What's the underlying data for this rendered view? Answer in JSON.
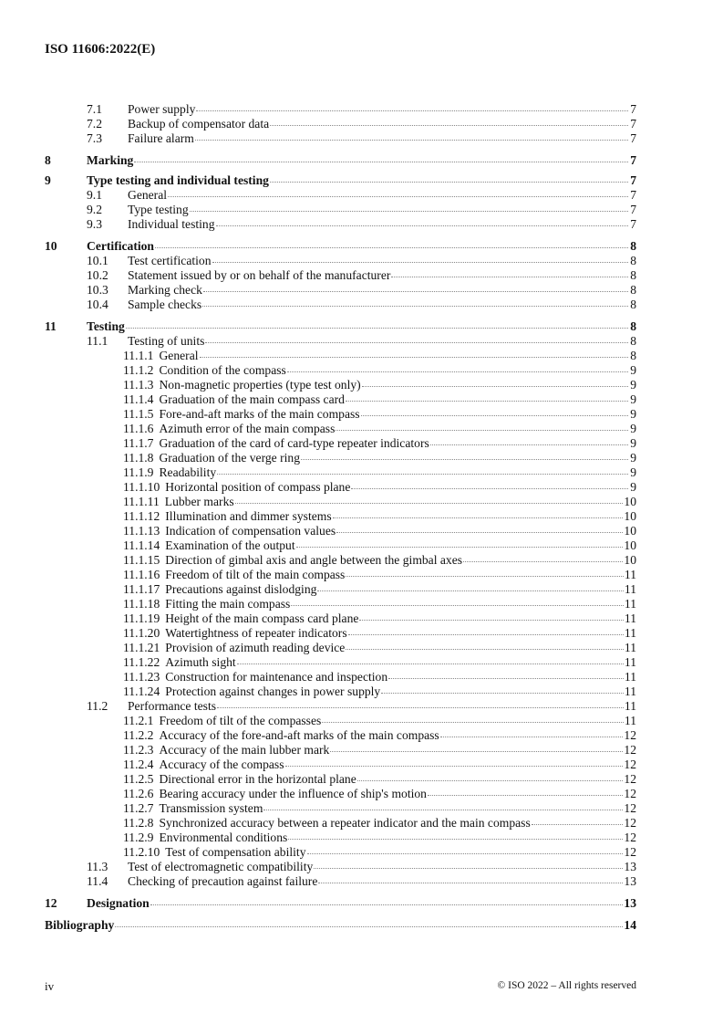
{
  "header": {
    "doc_id": "ISO 11606:2022(E)"
  },
  "toc": [
    {
      "level": 2,
      "num": "7.1",
      "title": "Power supply",
      "page": "7"
    },
    {
      "level": 2,
      "num": "7.2",
      "title": "Backup of compensator data",
      "page": "7"
    },
    {
      "level": 2,
      "num": "7.3",
      "title": "Failure alarm",
      "page": "7"
    },
    {
      "level": 1,
      "num": "8",
      "title": "Marking",
      "page": "7"
    },
    {
      "level": 1,
      "num": "9",
      "title": "Type testing and individual testing",
      "page": "7"
    },
    {
      "level": 2,
      "num": "9.1",
      "title": "General",
      "page": "7"
    },
    {
      "level": 2,
      "num": "9.2",
      "title": "Type testing",
      "page": "7"
    },
    {
      "level": 2,
      "num": "9.3",
      "title": "Individual testing",
      "page": "7"
    },
    {
      "level": 1,
      "num": "10",
      "title": "Certification",
      "page": "8"
    },
    {
      "level": 2,
      "num": "10.1",
      "title": "Test certification",
      "page": "8"
    },
    {
      "level": 2,
      "num": "10.2",
      "title": "Statement issued by or on behalf of the manufacturer",
      "page": "8"
    },
    {
      "level": 2,
      "num": "10.3",
      "title": "Marking check",
      "page": "8"
    },
    {
      "level": 2,
      "num": "10.4",
      "title": "Sample checks",
      "page": "8"
    },
    {
      "level": 1,
      "num": "11",
      "title": "Testing",
      "page": "8"
    },
    {
      "level": 2,
      "num": "11.1",
      "title": "Testing of units",
      "page": "8"
    },
    {
      "level": 3,
      "num": "11.1.1",
      "title": "General",
      "page": "8"
    },
    {
      "level": 3,
      "num": "11.1.2",
      "title": "Condition of the compass",
      "page": "9"
    },
    {
      "level": 3,
      "num": "11.1.3",
      "title": "Non-magnetic properties (type test only)",
      "page": "9"
    },
    {
      "level": 3,
      "num": "11.1.4",
      "title": "Graduation of the main compass card",
      "page": "9"
    },
    {
      "level": 3,
      "num": "11.1.5",
      "title": "Fore-and-aft marks of the main compass",
      "page": "9"
    },
    {
      "level": 3,
      "num": "11.1.6",
      "title": "Azimuth error of the main compass",
      "page": "9"
    },
    {
      "level": 3,
      "num": "11.1.7",
      "title": "Graduation of the card of card-type repeater indicators",
      "page": "9"
    },
    {
      "level": 3,
      "num": "11.1.8",
      "title": "Graduation of the verge ring",
      "page": "9"
    },
    {
      "level": 3,
      "num": "11.1.9",
      "title": "Readability",
      "page": "9"
    },
    {
      "level": 3,
      "num": "11.1.10",
      "title": "Horizontal position of compass plane",
      "page": "9"
    },
    {
      "level": 3,
      "num": "11.1.11",
      "title": "Lubber marks",
      "page": "10"
    },
    {
      "level": 3,
      "num": "11.1.12",
      "title": "Illumination and dimmer systems",
      "page": "10"
    },
    {
      "level": 3,
      "num": "11.1.13",
      "title": "Indication of compensation values",
      "page": "10"
    },
    {
      "level": 3,
      "num": "11.1.14",
      "title": "Examination of the output",
      "page": "10"
    },
    {
      "level": 3,
      "num": "11.1.15",
      "title": "Direction of gimbal axis and angle between the gimbal axes",
      "page": "10"
    },
    {
      "level": 3,
      "num": "11.1.16",
      "title": "Freedom of tilt of the main compass",
      "page": "11"
    },
    {
      "level": 3,
      "num": "11.1.17",
      "title": "Precautions against dislodging",
      "page": "11"
    },
    {
      "level": 3,
      "num": "11.1.18",
      "title": "Fitting the main compass",
      "page": "11"
    },
    {
      "level": 3,
      "num": "11.1.19",
      "title": "Height of the main compass card plane",
      "page": "11"
    },
    {
      "level": 3,
      "num": "11.1.20",
      "title": "Watertightness of repeater indicators",
      "page": "11"
    },
    {
      "level": 3,
      "num": "11.1.21",
      "title": "Provision of azimuth reading device",
      "page": "11"
    },
    {
      "level": 3,
      "num": "11.1.22",
      "title": "Azimuth sight",
      "page": "11"
    },
    {
      "level": 3,
      "num": "11.1.23",
      "title": "Construction for maintenance and inspection",
      "page": "11"
    },
    {
      "level": 3,
      "num": "11.1.24",
      "title": "Protection against changes in power supply",
      "page": "11"
    },
    {
      "level": 2,
      "num": "11.2",
      "title": "Performance tests",
      "page": "11"
    },
    {
      "level": 3,
      "num": "11.2.1",
      "title": "Freedom of tilt of the compasses",
      "page": "11"
    },
    {
      "level": 3,
      "num": "11.2.2",
      "title": "Accuracy of the fore-and-aft marks of the main compass",
      "page": "12"
    },
    {
      "level": 3,
      "num": "11.2.3",
      "title": "Accuracy of the main lubber mark",
      "page": "12"
    },
    {
      "level": 3,
      "num": "11.2.4",
      "title": "Accuracy of the compass",
      "page": "12"
    },
    {
      "level": 3,
      "num": "11.2.5",
      "title": "Directional error in the horizontal plane",
      "page": "12"
    },
    {
      "level": 3,
      "num": "11.2.6",
      "title": "Bearing accuracy under the influence of ship's motion",
      "page": "12"
    },
    {
      "level": 3,
      "num": "11.2.7",
      "title": "Transmission system",
      "page": "12"
    },
    {
      "level": 3,
      "num": "11.2.8",
      "title": "Synchronized accuracy between a repeater indicator and the main compass",
      "page": "12"
    },
    {
      "level": 3,
      "num": "11.2.9",
      "title": "Environmental conditions",
      "page": "12"
    },
    {
      "level": 3,
      "num": "11.2.10",
      "title": "Test of compensation ability",
      "page": "12"
    },
    {
      "level": 2,
      "num": "11.3",
      "title": "Test of electromagnetic compatibility",
      "page": "13"
    },
    {
      "level": 2,
      "num": "11.4",
      "title": "Checking of precaution against failure",
      "page": "13"
    },
    {
      "level": 1,
      "num": "12",
      "title": "Designation",
      "page": "13"
    },
    {
      "level": 1,
      "num": "",
      "title": "Bibliography",
      "page": "14"
    }
  ],
  "footer": {
    "page_number": "iv",
    "copyright": "© ISO 2022 – All rights reserved"
  }
}
